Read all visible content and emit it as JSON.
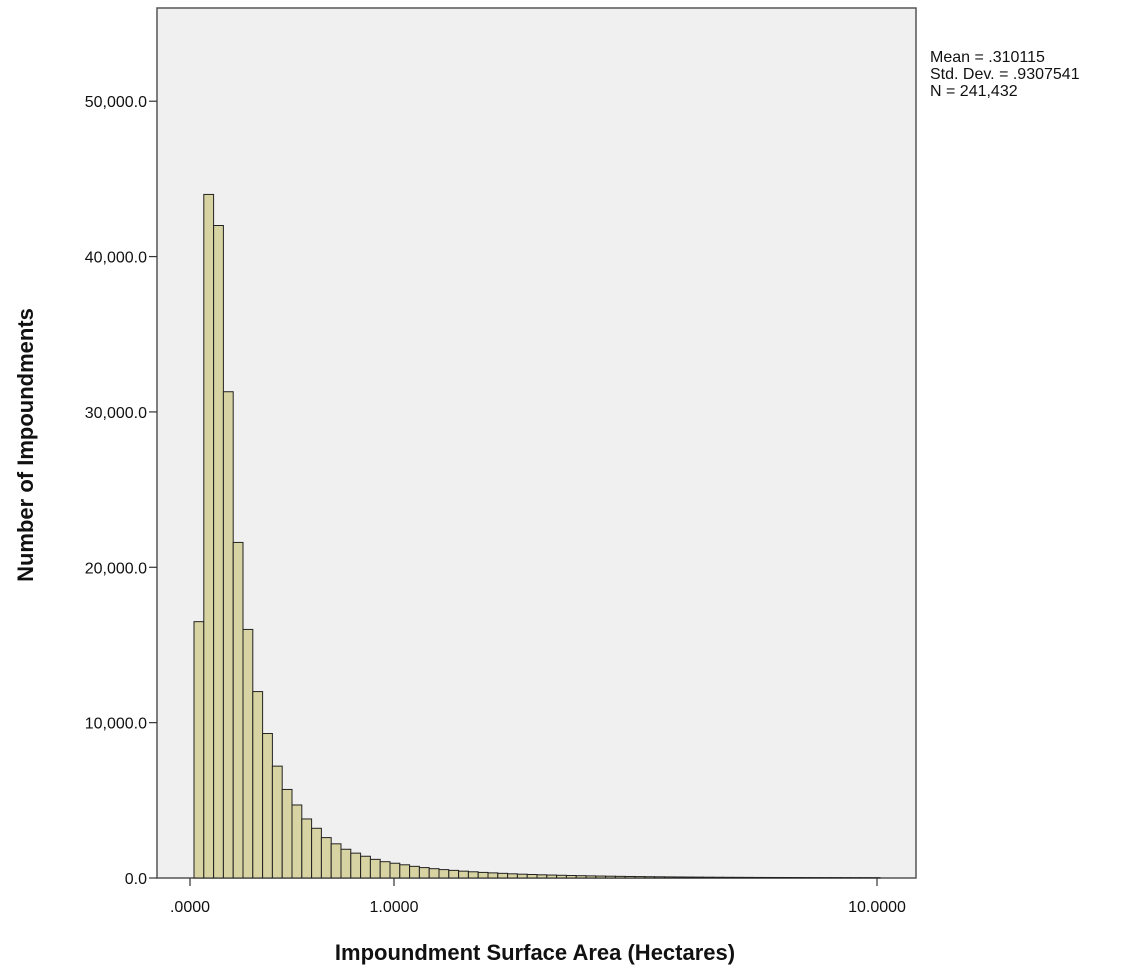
{
  "chart_data": {
    "type": "bar",
    "title": "",
    "xlabel": "Impoundment Surface Area (Hectares)",
    "ylabel": "Number of Impoundments",
    "x_scale": "log",
    "x_ticks": [
      {
        "value": 0,
        "label": ".0000"
      },
      {
        "value": 1,
        "label": "1.0000"
      },
      {
        "value": 10,
        "label": "10.0000"
      }
    ],
    "y_ticks": [
      {
        "value": 0,
        "label": "0.0"
      },
      {
        "value": 10000,
        "label": "10,000.0"
      },
      {
        "value": 20000,
        "label": "20,000.0"
      },
      {
        "value": 30000,
        "label": "30,000.0"
      },
      {
        "value": 40000,
        "label": "40,000.0"
      },
      {
        "value": 50000,
        "label": "50,000.0"
      }
    ],
    "ylim": [
      0,
      56000
    ],
    "grid": false,
    "bar_color": "#d8d3a2",
    "plot_background": "#f0f0f0",
    "bin_counts": [
      16500,
      44000,
      42000,
      31300,
      21600,
      16000,
      12000,
      9300,
      7200,
      5700,
      4700,
      3800,
      3200,
      2600,
      2200,
      1850,
      1600,
      1400,
      1200,
      1050,
      950,
      850,
      750,
      670,
      600,
      540,
      490,
      440,
      400,
      360,
      330,
      300,
      270,
      245,
      225,
      205,
      190,
      175,
      160,
      148,
      136,
      125,
      115,
      106,
      98,
      90,
      83,
      77,
      71,
      66,
      61,
      57,
      53,
      49,
      46,
      43,
      40,
      37,
      35,
      33,
      31,
      29,
      27,
      25,
      24,
      23,
      21,
      20,
      19,
      18
    ],
    "statistics": {
      "mean": "Mean = .310115",
      "std_dev": "Std. Dev. = .9307541",
      "n": "N = 241,432"
    }
  }
}
